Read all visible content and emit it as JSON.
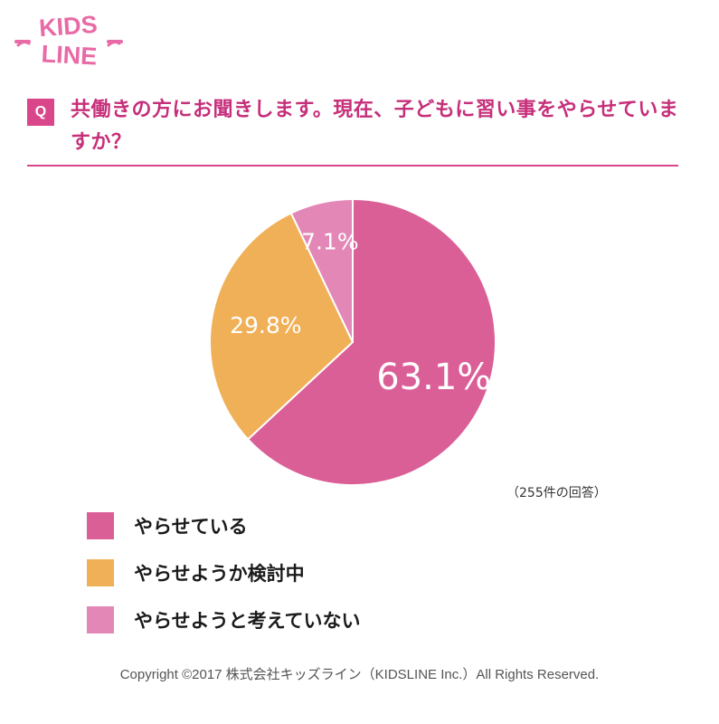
{
  "logo": {
    "line1": "KIDS",
    "line2": "LINE",
    "color": "#e86aa6"
  },
  "question": {
    "badge": "Q",
    "text": "共働きの方にお聞きします。現在、子どもに習い事をやらせていますか？"
  },
  "note": "（255件の回答）",
  "chart_data": {
    "type": "pie",
    "slices": [
      {
        "label": "やらせている",
        "value": 63.1,
        "display": "63.1%",
        "color": "#db5f97"
      },
      {
        "label": "やらせようか検討中",
        "value": 29.8,
        "display": "29.8%",
        "color": "#f0b057"
      },
      {
        "label": "やらせようと考えていない",
        "value": 7.1,
        "display": "7.1%",
        "color": "#e388b6"
      }
    ]
  },
  "footer": "Copyright ©2017 株式会社キッズライン（KIDSLINE Inc.）All Rights Reserved."
}
